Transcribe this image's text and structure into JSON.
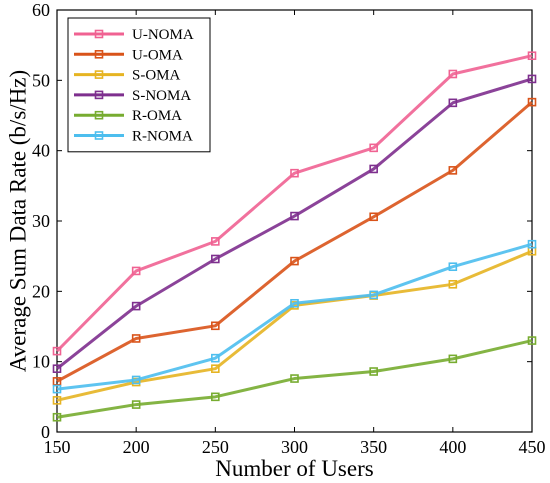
{
  "chart_data": {
    "type": "line",
    "xlabel": "Number of Users",
    "ylabel": "Average Sum Data Rate (b/s/Hz)",
    "x": [
      150,
      200,
      250,
      300,
      350,
      400,
      450
    ],
    "xlim": [
      150,
      450
    ],
    "ylim": [
      0,
      60
    ],
    "xticks": [
      "150",
      "200",
      "250",
      "300",
      "350",
      "400",
      "450"
    ],
    "yticks": [
      "0",
      "10",
      "20",
      "30",
      "40",
      "50",
      "60"
    ],
    "grid": false,
    "legend_position": "top-left",
    "marker": "square",
    "series": [
      {
        "name": "U-NOMA",
        "color": "#f06292",
        "values": [
          11.5,
          22.9,
          27.1,
          36.8,
          40.4,
          50.9,
          53.5
        ]
      },
      {
        "name": "U-OMA",
        "color": "#d95319",
        "values": [
          7.2,
          13.3,
          15.1,
          24.3,
          30.6,
          37.2,
          46.9
        ]
      },
      {
        "name": "S-OMA",
        "color": "#e6b422",
        "values": [
          4.5,
          7.1,
          9.0,
          18.0,
          19.4,
          21.0,
          25.7
        ]
      },
      {
        "name": "S-NOMA",
        "color": "#7e2f8e",
        "values": [
          9.0,
          17.9,
          24.6,
          30.7,
          37.4,
          46.8,
          50.2
        ]
      },
      {
        "name": "R-OMA",
        "color": "#77ac30",
        "values": [
          2.1,
          3.9,
          5.0,
          7.6,
          8.6,
          10.4,
          13.0
        ]
      },
      {
        "name": "R-NOMA",
        "color": "#4dbeee",
        "values": [
          6.1,
          7.4,
          10.5,
          18.3,
          19.5,
          23.5,
          26.7
        ]
      }
    ]
  }
}
